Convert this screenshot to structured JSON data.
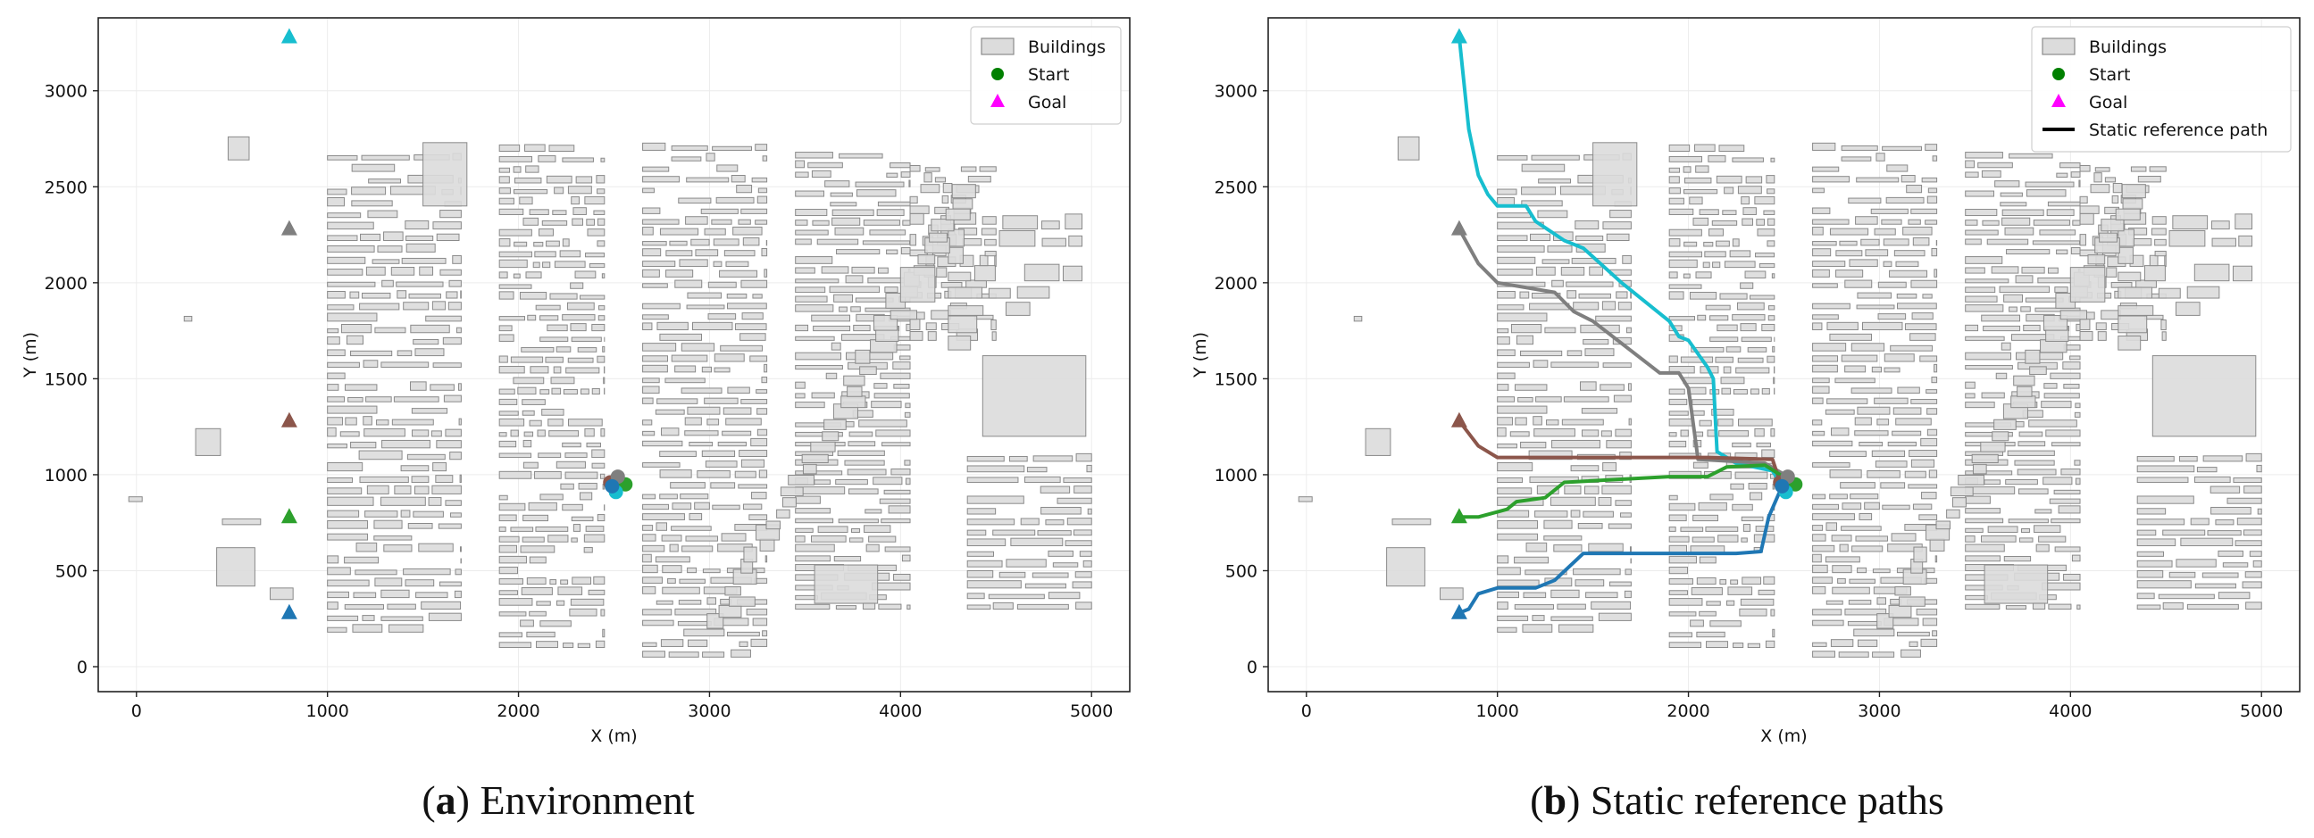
{
  "chart_data": [
    {
      "type": "scatter",
      "panel": "(a)",
      "caption_label": "a",
      "caption_text": "Environment",
      "xlabel": "X (m)",
      "ylabel": "Y (m)",
      "xlim": [
        -200,
        5200
      ],
      "ylim": [
        -130,
        3380
      ],
      "xticks": [
        0,
        1000,
        2000,
        3000,
        4000,
        5000
      ],
      "yticks": [
        0,
        500,
        1000,
        1500,
        2000,
        2500,
        3000
      ],
      "grid": true,
      "legend": {
        "position": "top-right",
        "entries": [
          "Buildings",
          "Start",
          "Goal"
        ]
      },
      "starts": [
        {
          "x": 2480,
          "y": 960,
          "color": "#8c564b"
        },
        {
          "x": 2560,
          "y": 950,
          "color": "#2ca02c"
        },
        {
          "x": 2520,
          "y": 990,
          "color": "#7f7f7f"
        },
        {
          "x": 2510,
          "y": 910,
          "color": "#17becf"
        },
        {
          "x": 2490,
          "y": 940,
          "color": "#1f77b4"
        }
      ],
      "goals": [
        {
          "x": 800,
          "y": 3280,
          "color": "#17becf"
        },
        {
          "x": 800,
          "y": 2280,
          "color": "#7f7f7f"
        },
        {
          "x": 800,
          "y": 1280,
          "color": "#8c564b"
        },
        {
          "x": 800,
          "y": 780,
          "color": "#2ca02c"
        },
        {
          "x": 800,
          "y": 280,
          "color": "#1f77b4"
        }
      ]
    },
    {
      "type": "line",
      "panel": "(b)",
      "caption_label": "b",
      "caption_text": "Static reference paths",
      "xlabel": "X (m)",
      "ylabel": "Y (m)",
      "xlim": [
        -200,
        5200
      ],
      "ylim": [
        -130,
        3380
      ],
      "xticks": [
        0,
        1000,
        2000,
        3000,
        4000,
        5000
      ],
      "yticks": [
        0,
        500,
        1000,
        1500,
        2000,
        2500,
        3000
      ],
      "grid": true,
      "legend": {
        "position": "top-right",
        "entries": [
          "Buildings",
          "Start",
          "Goal",
          "Static reference path"
        ]
      },
      "series": [
        {
          "color": "#17becf",
          "points": [
            [
              2510,
              910
            ],
            [
              2440,
              1020
            ],
            [
              2250,
              1060
            ],
            [
              2150,
              1120
            ],
            [
              2130,
              1500
            ],
            [
              2100,
              1560
            ],
            [
              2000,
              1700
            ],
            [
              1950,
              1720
            ],
            [
              1900,
              1800
            ],
            [
              1650,
              2000
            ],
            [
              1450,
              2180
            ],
            [
              1350,
              2220
            ],
            [
              1200,
              2320
            ],
            [
              1150,
              2400
            ],
            [
              1000,
              2400
            ],
            [
              950,
              2460
            ],
            [
              900,
              2560
            ],
            [
              850,
              2800
            ],
            [
              800,
              3280
            ]
          ]
        },
        {
          "color": "#7f7f7f",
          "points": [
            [
              2520,
              990
            ],
            [
              2400,
              1060
            ],
            [
              2050,
              1080
            ],
            [
              2000,
              1450
            ],
            [
              1950,
              1530
            ],
            [
              1850,
              1530
            ],
            [
              1500,
              1800
            ],
            [
              1400,
              1850
            ],
            [
              1300,
              1950
            ],
            [
              1000,
              2000
            ],
            [
              900,
              2100
            ],
            [
              800,
              2280
            ]
          ]
        },
        {
          "color": "#8c564b",
          "points": [
            [
              2480,
              960
            ],
            [
              2440,
              1080
            ],
            [
              2100,
              1090
            ],
            [
              1000,
              1090
            ],
            [
              900,
              1150
            ],
            [
              800,
              1280
            ]
          ]
        },
        {
          "color": "#2ca02c",
          "points": [
            [
              2560,
              950
            ],
            [
              2400,
              1050
            ],
            [
              2200,
              1040
            ],
            [
              2100,
              990
            ],
            [
              1900,
              990
            ],
            [
              1350,
              960
            ],
            [
              1250,
              880
            ],
            [
              1100,
              860
            ],
            [
              1050,
              820
            ],
            [
              900,
              780
            ],
            [
              800,
              780
            ]
          ]
        },
        {
          "color": "#1f77b4",
          "points": [
            [
              2490,
              940
            ],
            [
              2420,
              780
            ],
            [
              2380,
              600
            ],
            [
              2250,
              590
            ],
            [
              1750,
              590
            ],
            [
              1450,
              590
            ],
            [
              1300,
              450
            ],
            [
              1200,
              410
            ],
            [
              1000,
              410
            ],
            [
              900,
              380
            ],
            [
              850,
              300
            ],
            [
              800,
              280
            ]
          ]
        }
      ],
      "starts": [
        {
          "x": 2480,
          "y": 960,
          "color": "#8c564b"
        },
        {
          "x": 2560,
          "y": 950,
          "color": "#2ca02c"
        },
        {
          "x": 2520,
          "y": 990,
          "color": "#7f7f7f"
        },
        {
          "x": 2510,
          "y": 910,
          "color": "#17becf"
        },
        {
          "x": 2490,
          "y": 940,
          "color": "#1f77b4"
        }
      ],
      "goals": [
        {
          "x": 800,
          "y": 3280,
          "color": "#17becf"
        },
        {
          "x": 800,
          "y": 2280,
          "color": "#7f7f7f"
        },
        {
          "x": 800,
          "y": 1280,
          "color": "#8c564b"
        },
        {
          "x": 800,
          "y": 780,
          "color": "#2ca02c"
        },
        {
          "x": 800,
          "y": 280,
          "color": "#1f77b4"
        }
      ]
    }
  ]
}
